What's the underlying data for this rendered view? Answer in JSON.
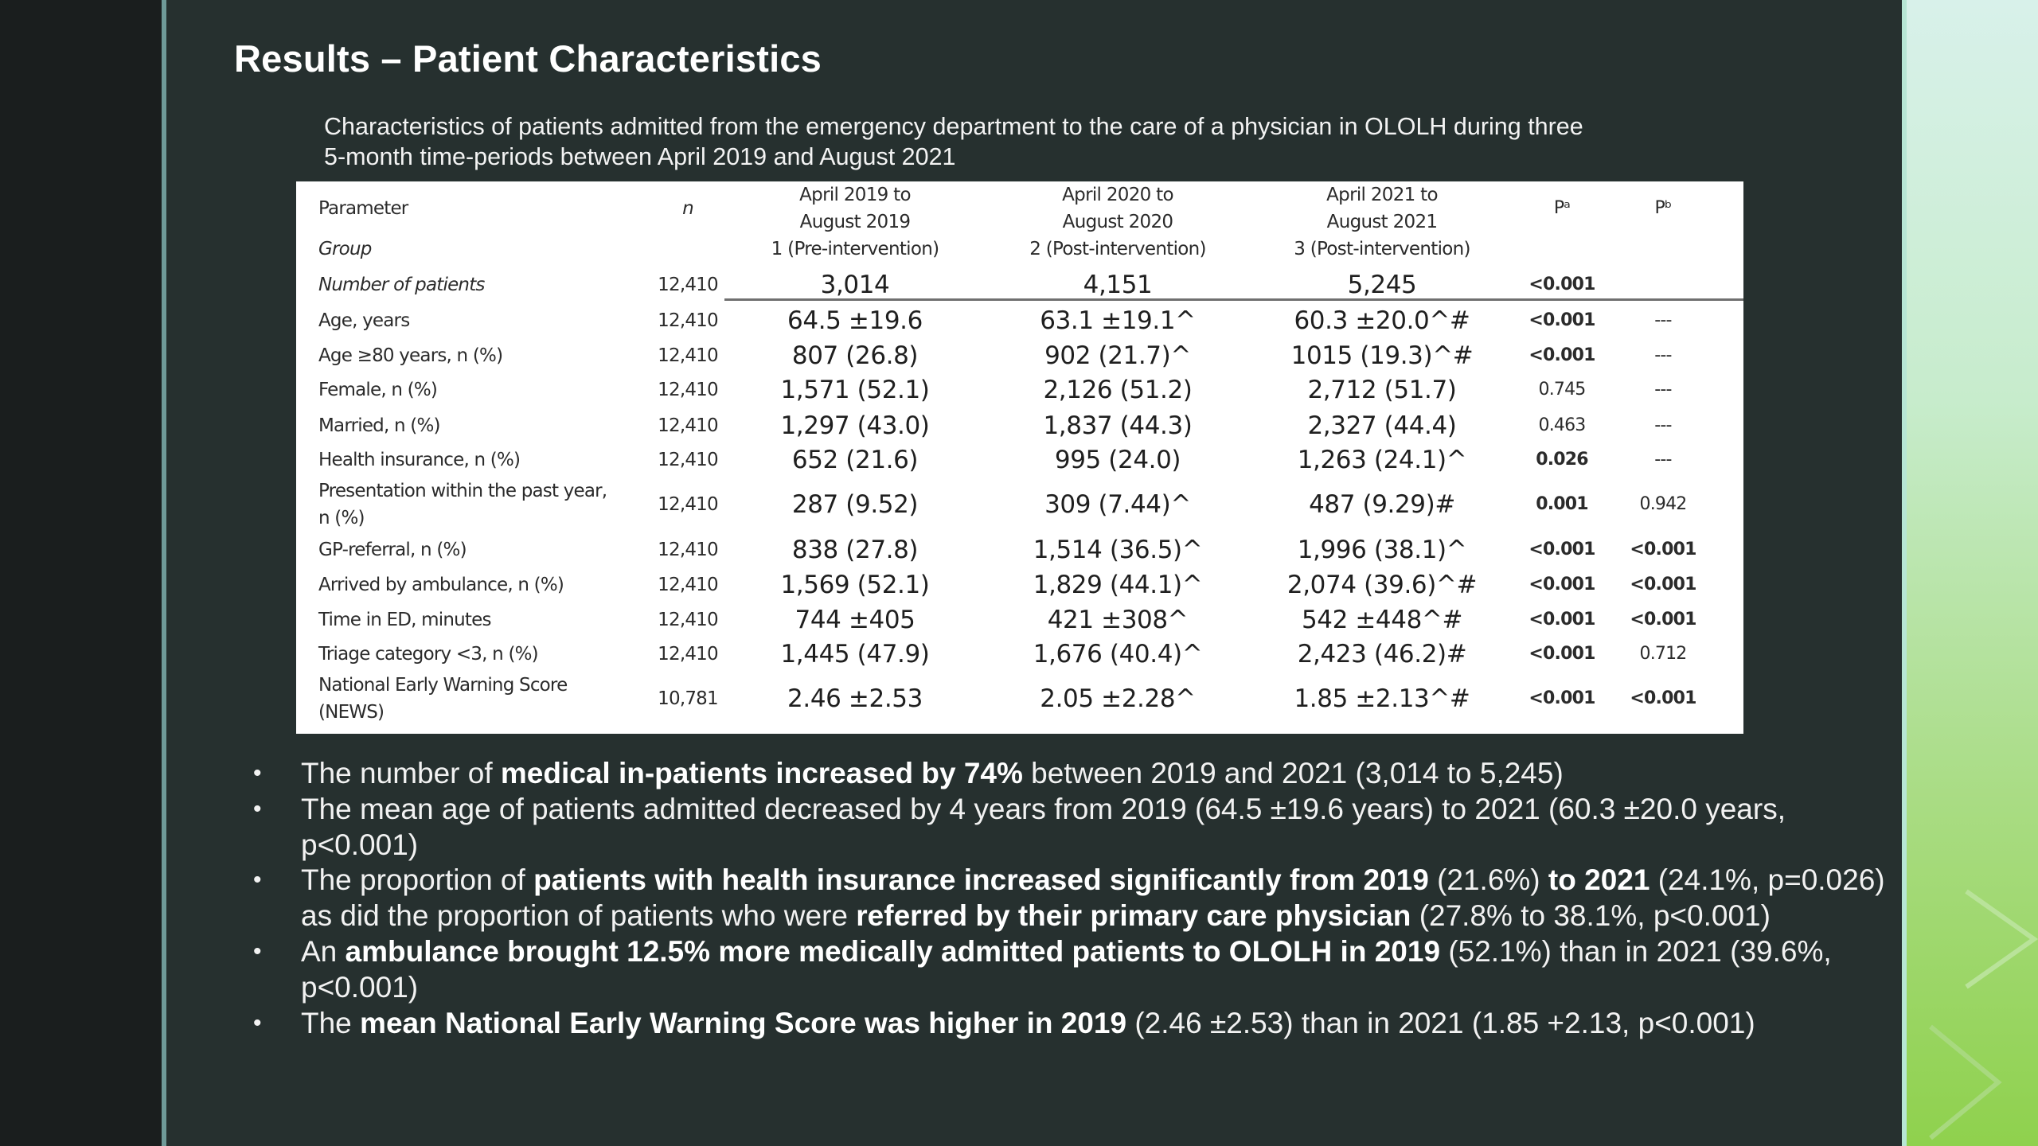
{
  "slide": {
    "title": "Results – Patient Characteristics",
    "caption_line1": "Characteristics of patients admitted from the emergency department to the care of a physician in OLOLH during three",
    "caption_line2": "5-month time-periods between April 2019 and August 2021"
  },
  "table": {
    "headers": {
      "parameter": "Parameter",
      "group": "Group",
      "n": "n",
      "c1": [
        "April 2019 to",
        "August 2019",
        "1 (Pre-intervention)"
      ],
      "c2": [
        "April 2020 to",
        "August 2020",
        "2 (Post-intervention)"
      ],
      "c3": [
        "April 2021 to",
        "August 2021",
        "3 (Post-intervention)"
      ],
      "pa": "Pᵃ",
      "pb": "Pᵇ"
    },
    "rows": [
      {
        "param": "Number of patients",
        "n": "12,410",
        "c1": "3,014",
        "c2": "4,151",
        "c3": "5,245",
        "pa": "<0.001",
        "pb": ""
      },
      {
        "param": "Age, years",
        "n": "12,410",
        "c1": "64.5 ±19.6",
        "c2": "63.1 ±19.1^",
        "c3": "60.3 ±20.0^#",
        "pa": "<0.001",
        "pb": "---"
      },
      {
        "param": "Age ≥80 years, n (%)",
        "n": "12,410",
        "c1": "807 (26.8)",
        "c2": "902 (21.7)^",
        "c3": "1015 (19.3)^#",
        "pa": "<0.001",
        "pb": "---"
      },
      {
        "param": "Female, n (%)",
        "n": "12,410",
        "c1": "1,571 (52.1)",
        "c2": "2,126 (51.2)",
        "c3": "2,712 (51.7)",
        "pa": "0.745",
        "pb": "---"
      },
      {
        "param": "Married, n (%)",
        "n": "12,410",
        "c1": "1,297 (43.0)",
        "c2": "1,837 (44.3)",
        "c3": "2,327 (44.4)",
        "pa": "0.463",
        "pb": "---"
      },
      {
        "param": "Health insurance, n (%)",
        "n": "12,410",
        "c1": "652 (21.6)",
        "c2": "995 (24.0)",
        "c3": "1,263 (24.1)^",
        "pa": "0.026",
        "pb": "---"
      },
      {
        "param": "Presentation within the past year, n (%)",
        "n": "12,410",
        "c1": "287 (9.52)",
        "c2": "309 (7.44)^",
        "c3": "487 (9.29)#",
        "pa": "0.001",
        "pb": "0.942"
      },
      {
        "param": "GP-referral, n (%)",
        "n": "12,410",
        "c1": "838 (27.8)",
        "c2": "1,514 (36.5)^",
        "c3": "1,996 (38.1)^",
        "pa": "<0.001",
        "pb": "<0.001"
      },
      {
        "param": "Arrived by ambulance, n (%)",
        "n": "12,410",
        "c1": "1,569 (52.1)",
        "c2": "1,829 (44.1)^",
        "c3": "2,074 (39.6)^#",
        "pa": "<0.001",
        "pb": "<0.001"
      },
      {
        "param": "Time in ED, minutes",
        "n": "12,410",
        "c1": "744 ±405",
        "c2": "421 ±308^",
        "c3": "542 ±448^#",
        "pa": "<0.001",
        "pb": "<0.001"
      },
      {
        "param": "Triage category <3, n (%)",
        "n": "12,410",
        "c1": "1,445 (47.9)",
        "c2": "1,676 (40.4)^",
        "c3": "2,423 (46.2)#",
        "pa": "<0.001",
        "pb": "0.712"
      },
      {
        "param": "National Early Warning Score (NEWS)",
        "n": "10,781",
        "c1": "2.46 ±2.53",
        "c2": "2.05 ±2.28^",
        "c3": "1.85 ±2.13^#",
        "pa": "<0.001",
        "pb": "<0.001"
      }
    ]
  },
  "bullets": [
    [
      "The number of ",
      "medical in-patients increased by 74%",
      " between 2019 and 2021 (3,014 to 5,245)"
    ],
    [
      "The mean age of patients admitted decreased by 4 years from 2019 (64.5 ±19.6 years) to 2021 (60.3 ±20.0 years, p<0.001)"
    ],
    [
      "The proportion of ",
      "patients with health insurance increased significantly from 2019",
      " (21.6%) ",
      "to 2021",
      " (24.1%, p=0.026) as did the proportion of patients who were ",
      "referred by their primary care physician",
      " (27.8% to 38.1%, p<0.001)"
    ],
    [
      "An ",
      "ambulance brought 12.5% more medically admitted patients to OLOLH in 2019",
      " (52.1%) than in 2021 (39.6%, p<0.001)"
    ],
    [
      "The ",
      "mean National Early Warning Score was higher in 2019",
      " (2.46 ±2.53) than in 2021 (1.85 +2.13, p<0.001)"
    ]
  ],
  "bullet_char": "•",
  "theme": {
    "background": "#26302f",
    "accent_line": "#6f9a98",
    "right_panel": "#a9dc83"
  }
}
